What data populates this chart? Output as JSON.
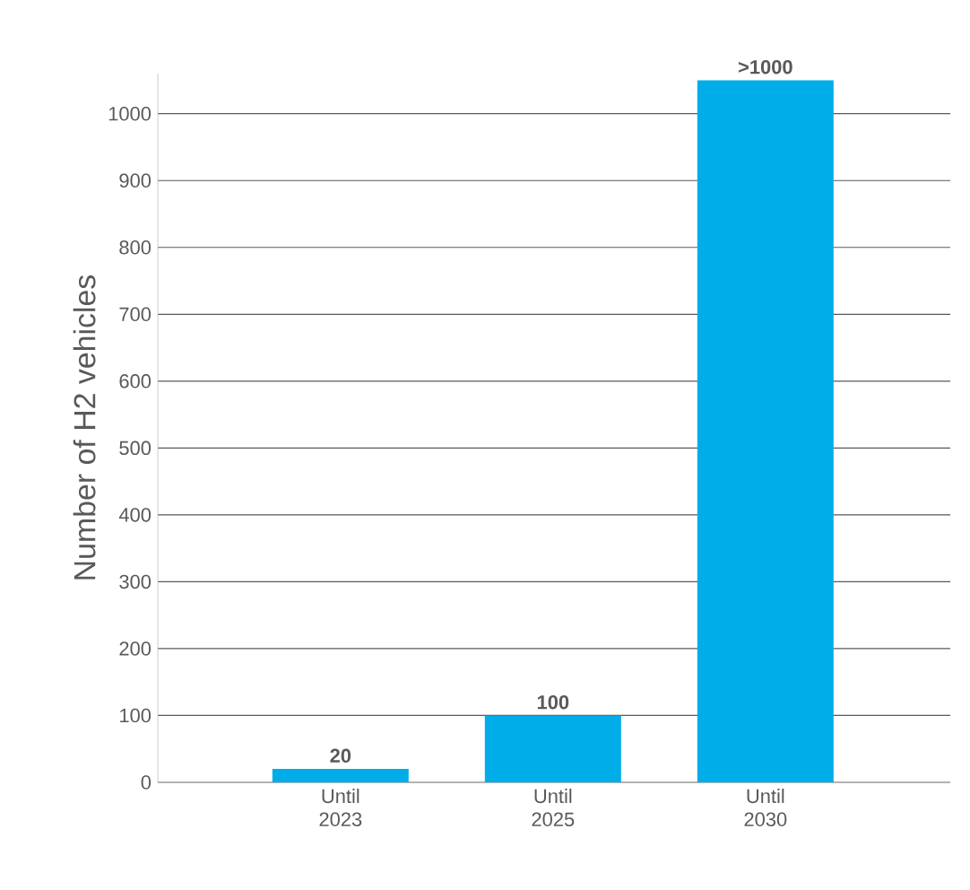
{
  "chart_data": {
    "type": "bar",
    "ylabel": "Number of H2  vehicles",
    "categories": [
      "Until 2023",
      "Until 2025",
      "Until 2030"
    ],
    "values": [
      20,
      100,
      1050
    ],
    "value_labels": [
      "20",
      "100",
      ">1000"
    ],
    "color": "#00ade9",
    "ylim": [
      0,
      1060
    ],
    "yticks": [
      0,
      100,
      200,
      300,
      400,
      500,
      600,
      700,
      800,
      900,
      1000
    ],
    "grid": "y"
  }
}
